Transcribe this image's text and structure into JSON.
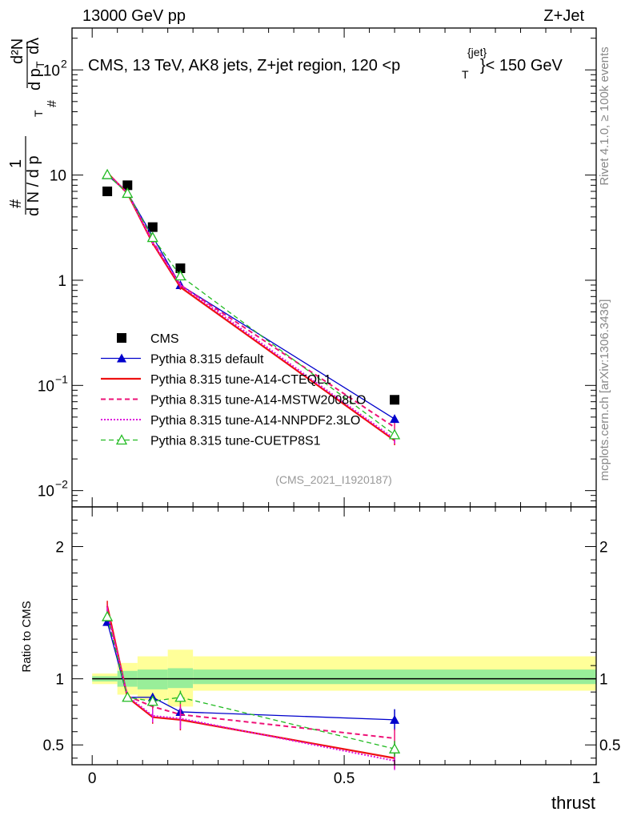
{
  "header": {
    "left": "13000 GeV pp",
    "right": "Z+Jet"
  },
  "plot_title": {
    "main": "CMS, 13 TeV, AK8 jets, Z+jet region, 120 <p",
    "sub": "T",
    "sup": "{jet}",
    "tail": "}< 150 GeV"
  },
  "side_labels": {
    "rivet": "Rivet 4.1.0, ≥ 100k events",
    "mcplots": "mcplots.cern.ch [arXiv:1306.3436]"
  },
  "analysis_id": "(CMS_2021_I1920187)",
  "colors": {
    "data": "#000000",
    "default": "#0000cc",
    "cteql1": "#ee1111",
    "mstw": "#ee1177",
    "nnpdf": "#dd11dd",
    "cuetp8s1": "#22bb22",
    "band_outer": "#ffff99",
    "band_inner": "#99ee99"
  },
  "chart_data": [
    {
      "type": "line",
      "panel": "main",
      "yscale": "log",
      "ylabel": "1/N dN/dp_T d^2N/dp_T dλ",
      "ylabel_parts": {
        "hash": "#",
        "one": "1",
        "dN": "d N / d p",
        "T": "T",
        "d2N": "d²N",
        "dp": "d p",
        "dl": "dλ"
      },
      "xlim": [
        -0.04,
        1.0
      ],
      "ylim": [
        0.007,
        250
      ],
      "y_ticks": [
        {
          "value": 100,
          "base": "10",
          "exp": "2"
        },
        {
          "value": 10,
          "base": "10",
          "exp": ""
        },
        {
          "value": 1,
          "base": "1",
          "exp": ""
        },
        {
          "value": 0.1,
          "base": "10",
          "exp": "−1"
        },
        {
          "value": 0.01,
          "base": "10",
          "exp": "−2"
        }
      ],
      "x": [
        0.03,
        0.07,
        0.12,
        0.175,
        0.6
      ],
      "series": [
        {
          "name": "CMS",
          "key": "data",
          "values": [
            7.0,
            8.0,
            3.2,
            1.3,
            0.073
          ],
          "errors": [
            0.1,
            0.1,
            0.05,
            0.03,
            0.002
          ]
        },
        {
          "name": "Pythia 8.315 default",
          "key": "default",
          "values": [
            10.0,
            6.8,
            2.6,
            0.9,
            0.048
          ],
          "errors": [
            0.2,
            0.1,
            0.06,
            0.03,
            0.004
          ]
        },
        {
          "name": "Pythia 8.315 tune-A14-CTEQL1",
          "key": "cteql1",
          "values": [
            10.5,
            6.7,
            2.25,
            0.86,
            0.03
          ],
          "errors": [
            0.2,
            0.1,
            0.1,
            0.05,
            0.003
          ]
        },
        {
          "name": "Pythia 8.315 tune-A14-MSTW2008LO",
          "key": "mstw",
          "values": [
            10.4,
            6.8,
            2.35,
            0.9,
            0.04
          ],
          "errors": [
            0.2,
            0.1,
            0.1,
            0.05,
            0.004
          ]
        },
        {
          "name": "Pythia 8.315 tune-A14-NNPDF2.3LO",
          "key": "nnpdf",
          "values": [
            10.3,
            6.8,
            2.3,
            0.9,
            0.031
          ],
          "errors": [
            0.2,
            0.1,
            0.1,
            0.05,
            0.003
          ]
        },
        {
          "name": "Pythia 8.315 tune-CUETP8S1",
          "key": "cuetp8s1",
          "values": [
            10.1,
            6.7,
            2.55,
            1.1,
            0.034
          ],
          "errors": [
            0.2,
            0.1,
            0.08,
            0.05,
            0.003
          ]
        }
      ]
    },
    {
      "type": "line",
      "panel": "ratio",
      "yscale": "linear",
      "ylabel": "Ratio to CMS",
      "xlabel": "thrust",
      "xlim": [
        -0.04,
        1.0
      ],
      "ylim": [
        0.35,
        2.3
      ],
      "x_ticks": [
        {
          "value": 0,
          "label": "0"
        },
        {
          "value": 0.5,
          "label": "0.5"
        },
        {
          "value": 1,
          "label": "1"
        }
      ],
      "y_ticks": [
        {
          "value": 2,
          "label": "2"
        },
        {
          "value": 1,
          "label": "1"
        },
        {
          "value": 0.5,
          "label": "0.5"
        }
      ],
      "bins": [
        0,
        0.05,
        0.09,
        0.15,
        0.2,
        1.0
      ],
      "band_outer": [
        [
          0.96,
          1.04
        ],
        [
          0.88,
          1.12
        ],
        [
          0.84,
          1.17
        ],
        [
          0.79,
          1.22
        ],
        [
          0.91,
          1.17
        ]
      ],
      "band_inner": [
        [
          0.98,
          1.02
        ],
        [
          0.94,
          1.06
        ],
        [
          0.92,
          1.07
        ],
        [
          0.93,
          1.08
        ],
        [
          0.96,
          1.07
        ]
      ],
      "x": [
        0.03,
        0.07,
        0.12,
        0.175,
        0.6
      ],
      "series": [
        {
          "name": "Pythia 8.315 default",
          "key": "default",
          "values": [
            1.43,
            0.86,
            0.86,
            0.75,
            0.69
          ],
          "errors": [
            0.03,
            0.02,
            0.03,
            0.04,
            0.08
          ]
        },
        {
          "name": "Pythia 8.315 tune-A14-CTEQL1",
          "key": "cteql1",
          "values": [
            1.55,
            0.86,
            0.71,
            0.69,
            0.4
          ],
          "errors": [
            0.04,
            0.03,
            0.05,
            0.08,
            0.08
          ]
        },
        {
          "name": "Pythia 8.315 tune-A14-MSTW2008LO",
          "key": "mstw",
          "values": [
            1.52,
            0.87,
            0.79,
            0.73,
            0.55
          ],
          "errors": [
            0.04,
            0.03,
            0.05,
            0.08,
            0.07
          ]
        },
        {
          "name": "Pythia 8.315 tune-A14-NNPDF2.3LO",
          "key": "nnpdf",
          "values": [
            1.5,
            0.87,
            0.72,
            0.7,
            0.38
          ],
          "errors": [
            0.04,
            0.03,
            0.05,
            0.08,
            0.07
          ]
        },
        {
          "name": "Pythia 8.315 tune-CUETP8S1",
          "key": "cuetp8s1",
          "values": [
            1.47,
            0.86,
            0.83,
            0.86,
            0.47
          ],
          "errors": [
            0.03,
            0.02,
            0.04,
            0.05,
            0.06
          ]
        }
      ]
    }
  ]
}
